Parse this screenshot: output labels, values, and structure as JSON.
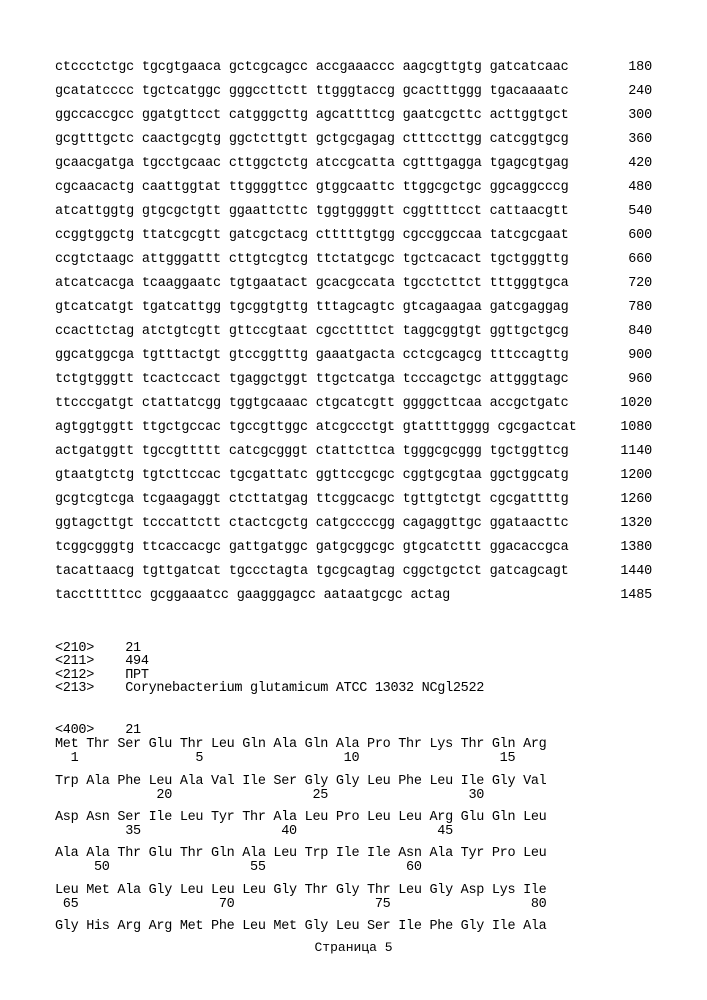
{
  "nucleotide_rows": [
    {
      "seq": "ctccctctgc tgcgtgaaca gctcgcagcc accgaaaccc aagcgttgtg gatcatcaac",
      "num": "180"
    },
    {
      "seq": "gcatatcccc tgctcatggc gggccttctt ttgggtaccg gcactttggg tgacaaaatc",
      "num": "240"
    },
    {
      "seq": "ggccaccgcc ggatgttcct catgggcttg agcattttcg gaatcgcttc acttggtgct",
      "num": "300"
    },
    {
      "seq": "gcgtttgctc caactgcgtg ggctcttgtt gctgcgagag ctttccttgg catcggtgcg",
      "num": "360"
    },
    {
      "seq": "gcaacgatga tgcctgcaac cttggctctg atccgcatta cgtttgagga tgagcgtgag",
      "num": "420"
    },
    {
      "seq": "cgcaacactg caattggtat ttggggttcc gtggcaattc ttggcgctgc ggcaggcccg",
      "num": "480"
    },
    {
      "seq": "atcattggtg gtgcgctgtt ggaattcttc tggtggggtt cggttttcct cattaacgtt",
      "num": "540"
    },
    {
      "seq": "ccggtggctg ttatcgcgtt gatcgctacg ctttttgtgg cgccggccaa tatcgcgaat",
      "num": "600"
    },
    {
      "seq": "ccgtctaagc attgggattt cttgtcgtcg ttctatgcgc tgctcacact tgctgggttg",
      "num": "660"
    },
    {
      "seq": "atcatcacga tcaaggaatc tgtgaatact gcacgccata tgcctcttct tttgggtgca",
      "num": "720"
    },
    {
      "seq": "gtcatcatgt tgatcattgg tgcggtgttg tttagcagtc gtcagaagaa gatcgaggag",
      "num": "780"
    },
    {
      "seq": "ccacttctag atctgtcgtt gttccgtaat cgccttttct taggcggtgt ggttgctgcg",
      "num": "840"
    },
    {
      "seq": "ggcatggcga tgtttactgt gtccggtttg gaaatgacta cctcgcagcg tttccagttg",
      "num": "900"
    },
    {
      "seq": "tctgtgggtt tcactccact tgaggctggt ttgctcatga tcccagctgc attgggtagc",
      "num": "960"
    },
    {
      "seq": "ttcccgatgt ctattatcgg tggtgcaaac ctgcatcgtt ggggcttcaa accgctgatc",
      "num": "1020"
    },
    {
      "seq": "agtggtggtt ttgctgccac tgccgttggc atcgccctgt gtattttgggg cgcgactcat",
      "num": "1080"
    },
    {
      "seq": "actgatggtt tgccgttttt catcgcgggt ctattcttca tgggcgcggg tgctggttcg",
      "num": "1140"
    },
    {
      "seq": "gtaatgtctg tgtcttccac tgcgattatc ggttccgcgc cggtgcgtaa ggctggcatg",
      "num": "1200"
    },
    {
      "seq": "gcgtcgtcga tcgaagaggt ctcttatgag ttcggcacgc tgttgtctgt cgcgattttg",
      "num": "1260"
    },
    {
      "seq": "ggtagcttgt tcccattctt ctactcgctg catgccccgg cagaggttgc ggataacttc",
      "num": "1320"
    },
    {
      "seq": "tcggcgggtg ttcaccacgc gattgatggc gatgcggcgc gtgcatcttt ggacaccgca",
      "num": "1380"
    },
    {
      "seq": "tacattaacg tgttgatcat tgccctagta tgcgcagtag cggctgctct gatcagcagt",
      "num": "1440"
    },
    {
      "seq": "tacctttttcc gcggaaatcc gaagggagcc aataatgcgc actag",
      "num": "1485"
    }
  ],
  "meta": {
    "l1": "<210>    21",
    "l2": "<211>    494",
    "l3": "<212>    ПРТ",
    "l4": "<213>    Corynebacterium glutamicum ATCC 13032 NCgl2522"
  },
  "protein": {
    "p0a": "<400>    21",
    "p1a": "Met Thr Ser Glu Thr Leu Gln Ala Gln Ala Pro Thr Lys Thr Gln Arg",
    "p1b": "  1               5                  10                  15",
    "p2a": "Trp Ala Phe Leu Ala Val Ile Ser Gly Gly Leu Phe Leu Ile Gly Val",
    "p2b": "             20                  25                  30",
    "p3a": "Asp Asn Ser Ile Leu Tyr Thr Ala Leu Pro Leu Leu Arg Glu Gln Leu",
    "p3b": "         35                  40                  45",
    "p4a": "Ala Ala Thr Glu Thr Gln Ala Leu Trp Ile Ile Asn Ala Tyr Pro Leu",
    "p4b": "     50                  55                  60",
    "p5a": "Leu Met Ala Gly Leu Leu Leu Gly Thr Gly Thr Leu Gly Asp Lys Ile",
    "p5b": " 65                  70                  75                  80",
    "p6a": "Gly His Arg Arg Met Phe Leu Met Gly Leu Ser Ile Phe Gly Ile Ala"
  },
  "footer": "Страница 5"
}
